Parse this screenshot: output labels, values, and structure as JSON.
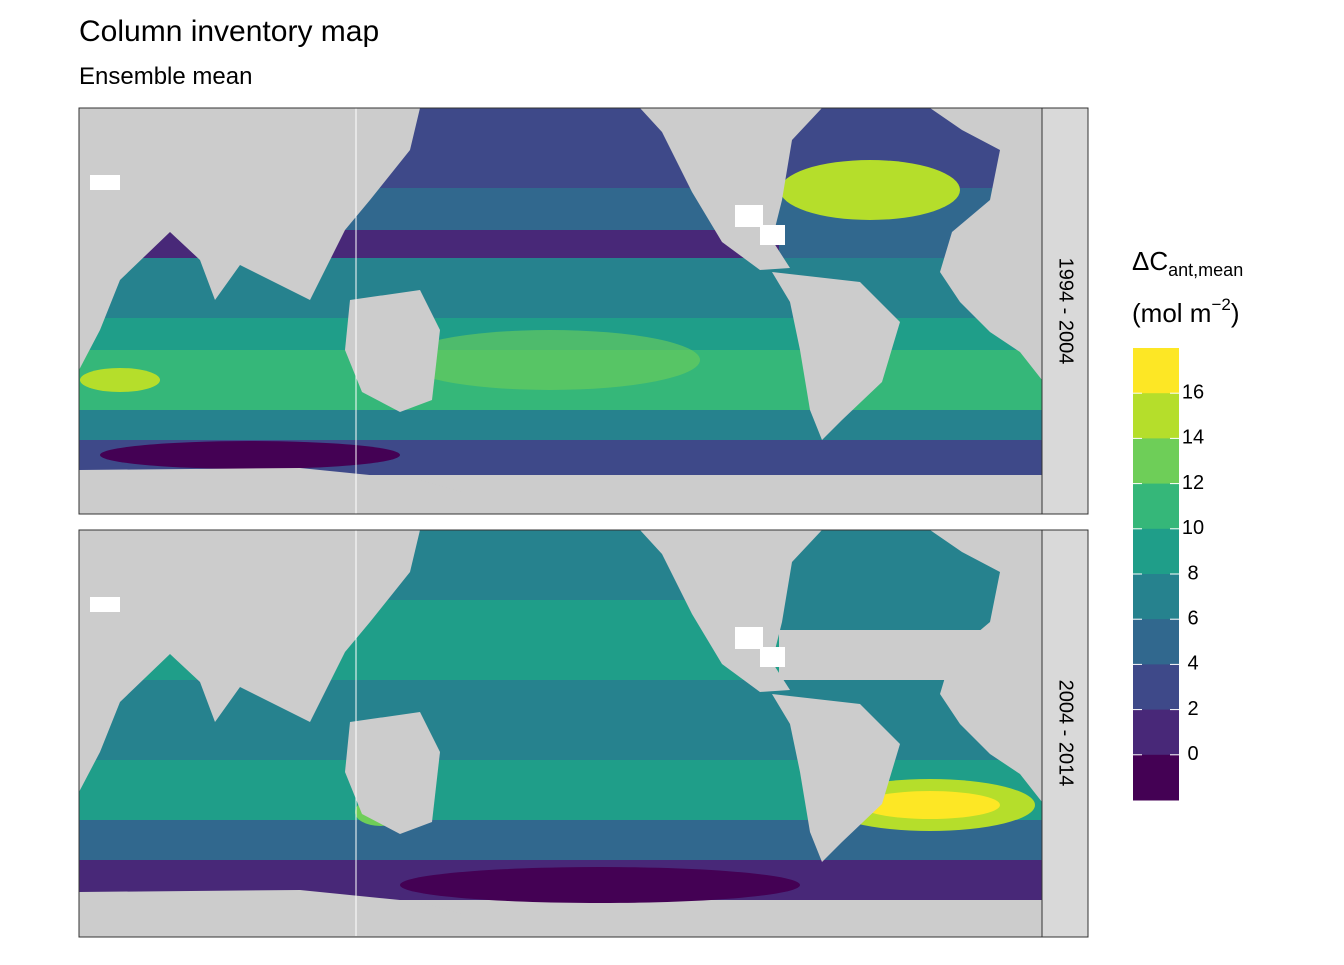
{
  "title": "Column inventory map",
  "subtitle": "Ensemble mean",
  "panels": [
    {
      "label": "1994 - 2004"
    },
    {
      "label": "2004 - 2014"
    }
  ],
  "legend": {
    "title": {
      "symbol": "ΔC",
      "subscript": "ant,mean",
      "unit_open": "(mol m",
      "unit_power": "−2",
      "unit_close": ")"
    },
    "colors": [
      "#fde725",
      "#b5de2b",
      "#6ece58",
      "#35b779",
      "#1f9e89",
      "#26828e",
      "#31688e",
      "#3e4989",
      "#482878",
      "#440154"
    ],
    "ticks": [
      16,
      14,
      12,
      10,
      8,
      6,
      4,
      2,
      0
    ]
  }
}
